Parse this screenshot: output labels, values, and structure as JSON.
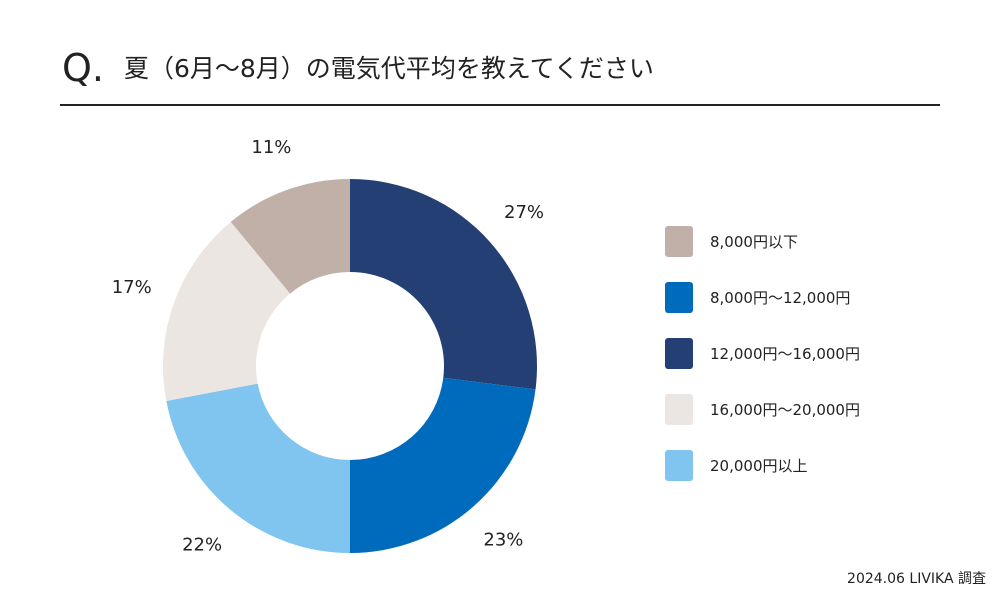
{
  "header": {
    "q_mark": "Q.",
    "title": "夏（6月〜8月）の電気代平均を教えてください"
  },
  "chart_data": {
    "type": "pie",
    "variant": "donut",
    "categories": [
      "8,000円以下",
      "8,000円〜12,000円",
      "12,000円〜16,000円",
      "16,000円〜20,000円",
      "20,000円以上"
    ],
    "values": [
      11,
      23,
      27,
      17,
      22
    ],
    "value_labels": [
      "11%",
      "23%",
      "27%",
      "17%",
      "22%"
    ],
    "colors": [
      "#c1b0a8",
      "#006bbd",
      "#243f74",
      "#ebe6e2",
      "#80c5ef"
    ],
    "slice_order_clockwise_from_top": [
      "12,000円〜16,000円",
      "8,000円〜12,000円",
      "20,000円以上",
      "16,000円〜20,000円",
      "8,000円以下"
    ],
    "legend_position": "right"
  },
  "legend": [
    {
      "label": "8,000円以下",
      "color": "#c1b0a8"
    },
    {
      "label": "8,000円〜12,000円",
      "color": "#006bbd"
    },
    {
      "label": "12,000円〜16,000円",
      "color": "#243f74"
    },
    {
      "label": "16,000円〜20,000円",
      "color": "#ebe6e2"
    },
    {
      "label": "20,000円以上",
      "color": "#80c5ef"
    }
  ],
  "footer": {
    "source": "2024.06 LIVIKA 調査"
  }
}
